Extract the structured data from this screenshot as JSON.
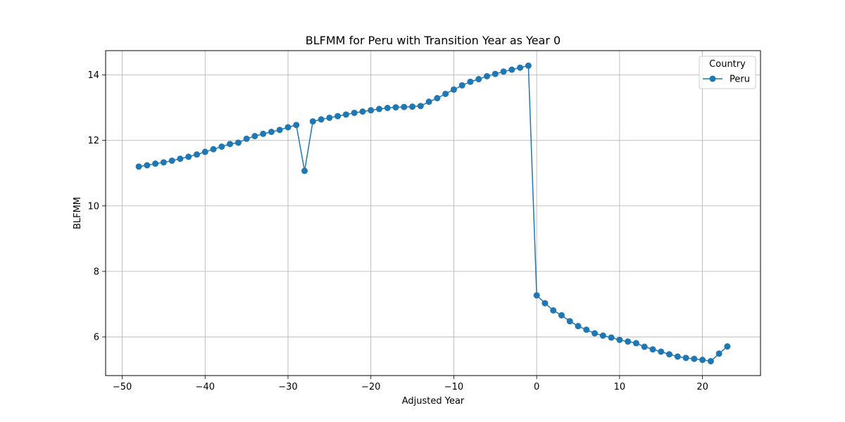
{
  "chart_data": {
    "type": "line",
    "title": "BLFMM for Peru with Transition Year as Year 0",
    "xlabel": "Adjusted Year",
    "ylabel": "BLFMM",
    "xlim": [
      -52,
      27
    ],
    "ylim": [
      4.82,
      14.74
    ],
    "xticks": [
      -50,
      -40,
      -30,
      -20,
      -10,
      0,
      10,
      20
    ],
    "yticks": [
      6,
      8,
      10,
      12,
      14
    ],
    "grid": true,
    "legend": {
      "title": "Country",
      "position": "top-right"
    },
    "series": [
      {
        "name": "Peru",
        "color": "#1f77b4",
        "marker": "circle",
        "x": [
          -48,
          -47,
          -46,
          -45,
          -44,
          -43,
          -42,
          -41,
          -40,
          -39,
          -38,
          -37,
          -36,
          -35,
          -34,
          -33,
          -32,
          -31,
          -30,
          -29,
          -28,
          -27,
          -26,
          -25,
          -24,
          -23,
          -22,
          -21,
          -20,
          -19,
          -18,
          -17,
          -16,
          -15,
          -14,
          -13,
          -12,
          -11,
          -10,
          -9,
          -8,
          -7,
          -6,
          -5,
          -4,
          -3,
          -2,
          -1,
          0,
          1,
          2,
          3,
          4,
          5,
          6,
          7,
          8,
          9,
          10,
          11,
          12,
          13,
          14,
          15,
          16,
          17,
          18,
          19,
          20,
          21,
          22,
          23
        ],
        "y": [
          11.2,
          11.24,
          11.29,
          11.33,
          11.38,
          11.44,
          11.5,
          11.57,
          11.65,
          11.73,
          11.81,
          11.89,
          11.93,
          12.05,
          12.13,
          12.2,
          12.26,
          12.32,
          12.4,
          12.47,
          11.07,
          12.58,
          12.64,
          12.69,
          12.74,
          12.79,
          12.84,
          12.88,
          12.92,
          12.96,
          12.99,
          13.01,
          13.02,
          13.03,
          13.05,
          13.18,
          13.29,
          13.42,
          13.55,
          13.68,
          13.79,
          13.87,
          13.96,
          14.03,
          14.1,
          14.16,
          14.22,
          14.28,
          7.27,
          7.03,
          6.81,
          6.66,
          6.48,
          6.33,
          6.22,
          6.11,
          6.04,
          5.98,
          5.91,
          5.86,
          5.81,
          5.7,
          5.62,
          5.55,
          5.47,
          5.4,
          5.36,
          5.33,
          5.3,
          5.26,
          5.49,
          5.71
        ]
      }
    ]
  }
}
